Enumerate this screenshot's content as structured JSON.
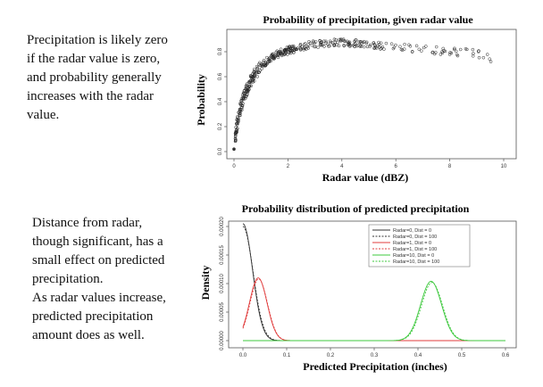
{
  "captions": {
    "top": "Precipitation is likely zero\nif  the radar value is zero,\nand probability generally\nincreases with the radar\nvalue.",
    "bottom": "Distance from radar,\nthough significant, has a\nsmall effect on predicted\nprecipitation.\nAs radar values increase,\npredicted precipitation\namount does as well."
  },
  "chart_data": [
    {
      "type": "scatter",
      "title": "Probability of precipitation, given radar value",
      "xlabel": "Radar value (dBZ)",
      "ylabel": "Probability",
      "xlim": [
        0,
        10
      ],
      "ylim": [
        0,
        0.9
      ],
      "xticks": [
        "0",
        "2",
        "4",
        "6",
        "8",
        "10"
      ],
      "yticks": [
        "0.0",
        "0.2",
        "0.4",
        "0.6",
        "0.8"
      ],
      "grid": false,
      "curve_points": [
        [
          0.0,
          0.02
        ],
        [
          0.1,
          0.2
        ],
        [
          0.2,
          0.32
        ],
        [
          0.4,
          0.46
        ],
        [
          0.6,
          0.56
        ],
        [
          0.8,
          0.63
        ],
        [
          1.0,
          0.68
        ],
        [
          1.3,
          0.74
        ],
        [
          1.6,
          0.78
        ],
        [
          2.0,
          0.81
        ],
        [
          2.5,
          0.84
        ],
        [
          3.0,
          0.86
        ],
        [
          3.5,
          0.87
        ],
        [
          4.0,
          0.875
        ],
        [
          4.5,
          0.87
        ],
        [
          5.0,
          0.86
        ],
        [
          5.5,
          0.85
        ],
        [
          6.0,
          0.84
        ],
        [
          6.5,
          0.83
        ],
        [
          7.0,
          0.82
        ],
        [
          7.5,
          0.81
        ],
        [
          8.0,
          0.8
        ],
        [
          9.0,
          0.79
        ],
        [
          9.7,
          0.73
        ]
      ]
    },
    {
      "type": "line",
      "title": "Probability distribution of predicted precipitation",
      "xlabel": "Predicted Precipitation (inches)",
      "ylabel": "Density",
      "xlim": [
        0,
        0.6
      ],
      "ylim": [
        0,
        0.0002
      ],
      "xticks": [
        "0.0",
        "0.1",
        "0.2",
        "0.3",
        "0.4",
        "0.5",
        "0.6"
      ],
      "yticks": [
        "0.00000",
        "0.00005",
        "0.00010",
        "0.00015",
        "0.00020"
      ],
      "legend_position": "top-right",
      "series": [
        {
          "name": "Radar=0, Dist = 0",
          "color": "#333333",
          "dash": "solid",
          "mean": 0.0,
          "sd": 0.022,
          "peak": 0.000205
        },
        {
          "name": "Radar=0, Dist = 100",
          "color": "#333333",
          "dash": "dashed",
          "mean": 0.0,
          "sd": 0.023,
          "peak": 0.0002
        },
        {
          "name": "Radar=1, Dist = 0",
          "color": "#e03c3c",
          "dash": "solid",
          "mean": 0.035,
          "sd": 0.02,
          "peak": 0.00011
        },
        {
          "name": "Radar=1, Dist = 100",
          "color": "#e03c3c",
          "dash": "dashed",
          "mean": 0.036,
          "sd": 0.02,
          "peak": 0.000108
        },
        {
          "name": "Radar=10, Dist = 0",
          "color": "#3cc83c",
          "dash": "solid",
          "mean": 0.43,
          "sd": 0.024,
          "peak": 0.000104
        },
        {
          "name": "Radar=10, Dist = 100",
          "color": "#3cc83c",
          "dash": "dashed",
          "mean": 0.432,
          "sd": 0.024,
          "peak": 0.000102
        }
      ]
    }
  ]
}
